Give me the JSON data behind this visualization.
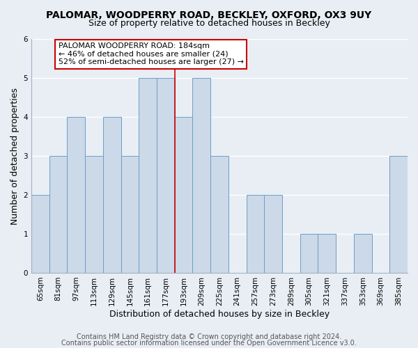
{
  "title": "PALOMAR, WOODPERRY ROAD, BECKLEY, OXFORD, OX3 9UY",
  "subtitle": "Size of property relative to detached houses in Beckley",
  "xlabel": "Distribution of detached houses by size in Beckley",
  "ylabel": "Number of detached properties",
  "bar_labels": [
    "65sqm",
    "81sqm",
    "97sqm",
    "113sqm",
    "129sqm",
    "145sqm",
    "161sqm",
    "177sqm",
    "193sqm",
    "209sqm",
    "225sqm",
    "241sqm",
    "257sqm",
    "273sqm",
    "289sqm",
    "305sqm",
    "321sqm",
    "337sqm",
    "353sqm",
    "369sqm",
    "385sqm"
  ],
  "bar_values": [
    2,
    3,
    4,
    3,
    4,
    3,
    5,
    5,
    4,
    5,
    3,
    0,
    2,
    2,
    0,
    1,
    1,
    0,
    1,
    0,
    3
  ],
  "bar_color": "#ccd9e8",
  "bar_edge_color": "#6b9ec8",
  "highlight_index": 7,
  "highlight_line_color": "#cc0000",
  "annotation_text": "PALOMAR WOODPERRY ROAD: 184sqm\n← 46% of detached houses are smaller (24)\n52% of semi-detached houses are larger (27) →",
  "annotation_box_edge": "#cc0000",
  "annotation_box_face": "#ffffff",
  "ylim": [
    0,
    6
  ],
  "yticks": [
    0,
    1,
    2,
    3,
    4,
    5,
    6
  ],
  "footer_line1": "Contains HM Land Registry data © Crown copyright and database right 2024.",
  "footer_line2": "Contains public sector information licensed under the Open Government Licence v3.0.",
  "title_fontsize": 10,
  "subtitle_fontsize": 9,
  "axis_label_fontsize": 9,
  "tick_fontsize": 7.5,
  "annotation_fontsize": 8,
  "footer_fontsize": 7,
  "background_color": "#e8eef4",
  "grid_color": "#ffffff",
  "spine_color": "#a0b0c0"
}
